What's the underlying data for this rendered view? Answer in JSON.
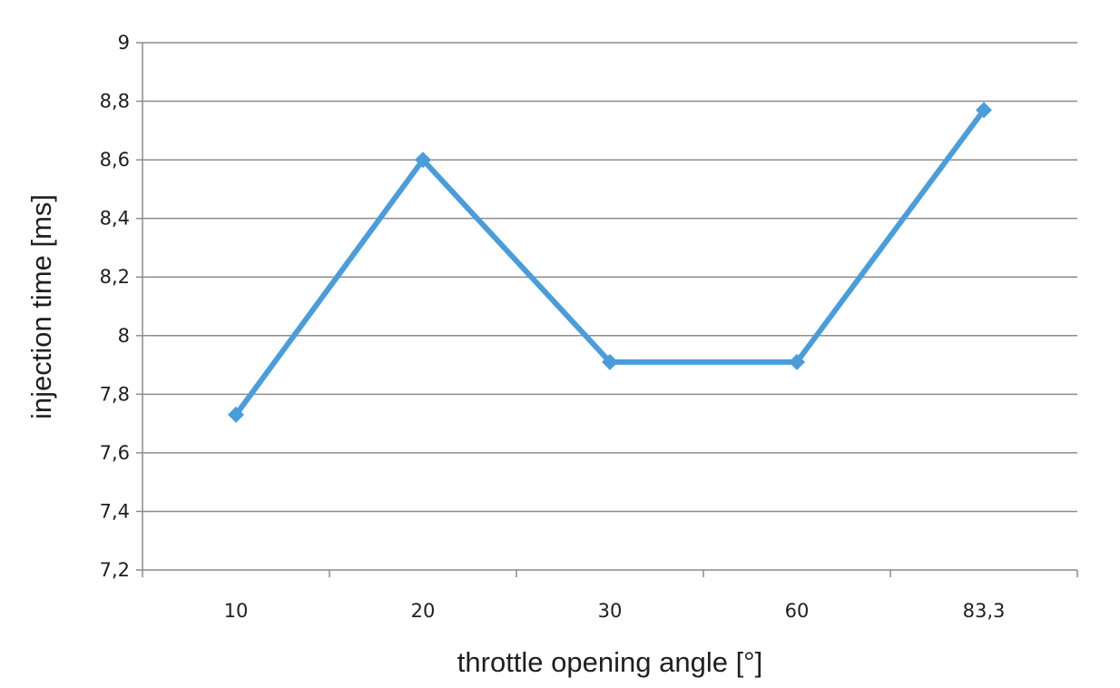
{
  "chart_data": {
    "type": "line",
    "categories": [
      "10",
      "20",
      "30",
      "60",
      "83,3"
    ],
    "series": [
      {
        "values": [
          7.73,
          8.6,
          7.91,
          7.91,
          8.77
        ]
      }
    ],
    "xlabel": "throttle opening angle [°]",
    "ylabel": "injection time [ms]",
    "ylim": [
      7.2,
      9
    ],
    "yticks": [
      {
        "value": 7.2,
        "label": "7,2"
      },
      {
        "value": 7.4,
        "label": "7,4"
      },
      {
        "value": 7.6,
        "label": "7,6"
      },
      {
        "value": 7.8,
        "label": "7,8"
      },
      {
        "value": 8.0,
        "label": "8"
      },
      {
        "value": 8.2,
        "label": "8,2"
      },
      {
        "value": 8.4,
        "label": "8,4"
      },
      {
        "value": 8.6,
        "label": "8,6"
      },
      {
        "value": 8.8,
        "label": "8,8"
      },
      {
        "value": 9.0,
        "label": "9"
      }
    ],
    "grid": "horizontal",
    "legend": "none",
    "colors": {
      "series": "#4a9ddb",
      "grid": "#8c8c8c",
      "axis": "#8c8c8c",
      "text": "#1f1f1f"
    }
  }
}
